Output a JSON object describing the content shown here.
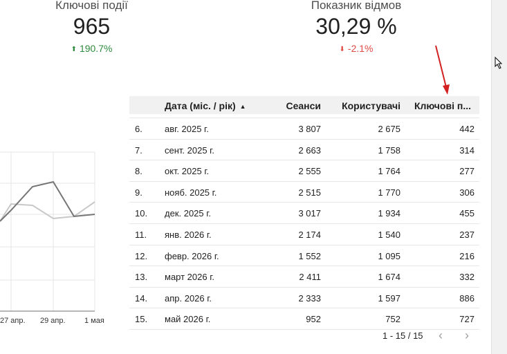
{
  "kpis": [
    {
      "title": "Ключові події",
      "value": "965",
      "delta": "190.7%",
      "delta_direction": "up",
      "delta_color": "#2e8b3d"
    },
    {
      "title": "Показник відмов",
      "value": "30,29 %",
      "delta": "-2.1%",
      "delta_direction": "down",
      "delta_color": "#e34a44"
    }
  ],
  "chart": {
    "x_labels": [
      "27 апр.",
      "29 апр.",
      "1 мая"
    ],
    "series_colors": [
      "#757575",
      "#c8c8c8"
    ]
  },
  "table": {
    "columns": [
      "Дата (міс. / рік)",
      "Сеанси",
      "Користувачі",
      "Ключові п..."
    ],
    "sort": "ascending",
    "rows": [
      {
        "idx": "6.",
        "date": "авг. 2025 г.",
        "sessions": "3 807",
        "users": "2 675",
        "key": "442"
      },
      {
        "idx": "7.",
        "date": "сент. 2025 г.",
        "sessions": "2 663",
        "users": "1 758",
        "key": "314"
      },
      {
        "idx": "8.",
        "date": "окт. 2025 г.",
        "sessions": "2 555",
        "users": "1 764",
        "key": "277"
      },
      {
        "idx": "9.",
        "date": "нояб. 2025 г.",
        "sessions": "2 515",
        "users": "1 770",
        "key": "306"
      },
      {
        "idx": "10.",
        "date": "дек. 2025 г.",
        "sessions": "3 017",
        "users": "1 934",
        "key": "455"
      },
      {
        "idx": "11.",
        "date": "янв. 2026 г.",
        "sessions": "2 174",
        "users": "1 540",
        "key": "237"
      },
      {
        "idx": "12.",
        "date": "февр. 2026 г.",
        "sessions": "1 552",
        "users": "1 095",
        "key": "216"
      },
      {
        "idx": "13.",
        "date": "март 2026 г.",
        "sessions": "2 411",
        "users": "1 674",
        "key": "332"
      },
      {
        "idx": "14.",
        "date": "апр. 2026 г.",
        "sessions": "2 333",
        "users": "1 597",
        "key": "886"
      },
      {
        "idx": "15.",
        "date": "май 2026 г.",
        "sessions": "952",
        "users": "752",
        "key": "727"
      }
    ],
    "pagination": "1 - 15 / 15"
  },
  "icons": {
    "prev": "chevron-left-icon",
    "next": "chevron-right-icon",
    "sort": "sort-ascending-icon"
  },
  "annotation_color": "#d32020"
}
